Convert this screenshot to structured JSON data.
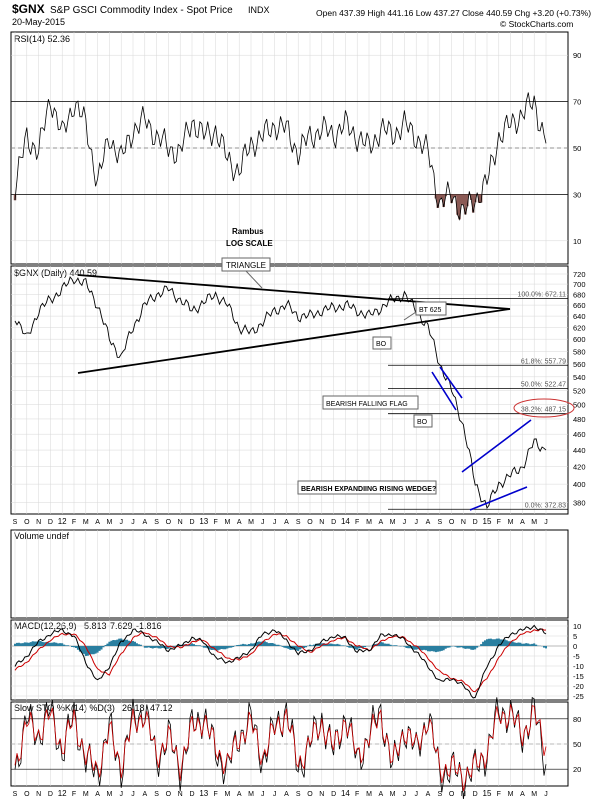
{
  "header": {
    "symbol": "$GNX",
    "title": "S&P GSCI Commodity Index - Spot Price",
    "exchange": "INDX",
    "date": "20-May-2015",
    "quote": "Open 437.39  High 441.16  Low 437.27  Close 440.59  Chg +3.20 (+0.73%)",
    "watermark": "© StockCharts.com"
  },
  "months": [
    "S",
    "O",
    "N",
    "D",
    "12",
    "F",
    "M",
    "A",
    "M",
    "J",
    "J",
    "A",
    "S",
    "O",
    "N",
    "D",
    "13",
    "F",
    "M",
    "A",
    "M",
    "J",
    "J",
    "A",
    "S",
    "O",
    "N",
    "D",
    "14",
    "F",
    "M",
    "A",
    "M",
    "J",
    "J",
    "A",
    "S",
    "O",
    "N",
    "D",
    "15",
    "F",
    "M",
    "A",
    "M",
    "J"
  ],
  "colors": {
    "price": "#000000",
    "trend": "#0000cc",
    "macd_fast": "#000000",
    "macd_signal": "#cc0000",
    "histogram": "#2a7fa0",
    "rsi_fill": "#8b5a55",
    "sto_d": "#cc0000",
    "grid": "#d7d7d7"
  },
  "annotations": {
    "rambus": "Rambus",
    "log_scale": "LOG SCALE",
    "triangle": "TRIANGLE",
    "bt625": "BT 625",
    "bo1": "BO",
    "bo2": "BO",
    "flag": "BEARISH FALLING FLAG",
    "wedge": "BEARISH EXPANDIING RISING WEDGE?"
  },
  "chart_data": [
    {
      "type": "line",
      "panel": "rsi",
      "title": "RSI(14) 52.36",
      "yticks": [
        10,
        30,
        50,
        70,
        90
      ],
      "ylim": [
        0,
        100
      ],
      "y_labels": [
        "10",
        "30",
        "50",
        "70",
        "90"
      ],
      "x_month_index": [
        0,
        1,
        2,
        3,
        4,
        5,
        6,
        7,
        8,
        9,
        10,
        11,
        12,
        13,
        14,
        15,
        16,
        17,
        18,
        19,
        20,
        21,
        22,
        23,
        24,
        25,
        26,
        27,
        28,
        29,
        30,
        31,
        32,
        33,
        34,
        35,
        36,
        37,
        38,
        39,
        40,
        41,
        42,
        43,
        44,
        45
      ],
      "values": [
        33,
        55,
        48,
        72,
        55,
        70,
        60,
        35,
        55,
        45,
        58,
        62,
        55,
        50,
        48,
        62,
        55,
        58,
        45,
        40,
        52,
        55,
        60,
        58,
        48,
        55,
        58,
        56,
        60,
        55,
        50,
        58,
        56,
        60,
        55,
        48,
        26,
        30,
        22,
        28,
        35,
        55,
        60,
        65,
        70,
        52
      ]
    },
    {
      "type": "line",
      "panel": "price",
      "title": "$GNX (Daily) 440.59",
      "scale": "log",
      "ylim": [
        370,
        720
      ],
      "yticks": [
        380,
        400,
        420,
        440,
        460,
        480,
        500,
        520,
        540,
        560,
        580,
        600,
        620,
        640,
        660,
        680,
        700,
        720
      ],
      "y_labels": [
        "380",
        "400",
        "420",
        "440",
        "460",
        "480",
        "500",
        "520",
        "540",
        "560",
        "580",
        "600",
        "620",
        "640",
        "660",
        "680",
        "700",
        "720"
      ],
      "x_month_index": [
        0,
        1,
        2,
        3,
        4,
        5,
        6,
        7,
        8,
        9,
        10,
        11,
        12,
        13,
        14,
        15,
        16,
        17,
        18,
        19,
        20,
        21,
        22,
        23,
        24,
        25,
        26,
        27,
        28,
        29,
        30,
        31,
        32,
        33,
        34,
        35,
        36,
        37,
        38,
        39,
        40,
        41,
        42,
        43,
        44,
        45
      ],
      "values": [
        640,
        600,
        650,
        670,
        690,
        712,
        700,
        660,
        600,
        570,
        620,
        660,
        680,
        690,
        670,
        650,
        665,
        680,
        660,
        620,
        610,
        630,
        650,
        660,
        640,
        640,
        650,
        655,
        660,
        650,
        640,
        655,
        670,
        680,
        650,
        620,
        560,
        520,
        470,
        400,
        375,
        400,
        410,
        420,
        450,
        440
      ],
      "retracements": [
        {
          "label": "100.0%: 672.11",
          "value": 672.11
        },
        {
          "label": "61.8%: 557.79",
          "value": 557.79
        },
        {
          "label": "50.0%: 522.47",
          "value": 522.47
        },
        {
          "label": "38.2%: 487.15",
          "value": 487.15
        },
        {
          "label": "0.0%: 372.83",
          "value": 372.83
        }
      ]
    },
    {
      "type": "bar",
      "panel": "volume",
      "title": "Volume undef",
      "values": []
    },
    {
      "type": "line",
      "panel": "macd",
      "title": "MACD(12,26,9)",
      "title_values": {
        "macd": "5.813",
        "signal": "7.629",
        "hist": "-1.816"
      },
      "ylim": [
        -27,
        13
      ],
      "yticks": [
        -25,
        -20,
        -15,
        -10,
        -5,
        0,
        5,
        10
      ],
      "y_labels": [
        "-25",
        "-20",
        "-15",
        "-10",
        "-5",
        "0",
        "5",
        "10"
      ],
      "series": [
        {
          "key": "macd",
          "values": [
            -10,
            -5,
            2,
            6,
            8,
            5,
            -8,
            -18,
            -10,
            2,
            8,
            6,
            2,
            -2,
            0,
            4,
            2,
            -6,
            -8,
            -6,
            -2,
            6,
            8,
            3,
            -4,
            -2,
            2,
            5,
            4,
            -3,
            -2,
            5,
            6,
            3,
            -3,
            -10,
            -18,
            -16,
            -20,
            -26,
            -10,
            0,
            6,
            8,
            10,
            6
          ]
        },
        {
          "key": "signal",
          "values": [
            -12,
            -8,
            -2,
            3,
            6,
            6,
            0,
            -12,
            -14,
            -4,
            4,
            7,
            4,
            0,
            -1,
            2,
            3,
            -2,
            -6,
            -7,
            -4,
            2,
            6,
            5,
            0,
            -3,
            0,
            3,
            4,
            0,
            -2,
            2,
            5,
            4,
            0,
            -6,
            -13,
            -16,
            -18,
            -23,
            -16,
            -6,
            2,
            6,
            8,
            8
          ]
        }
      ]
    },
    {
      "type": "line",
      "panel": "stochastic",
      "title": "Slow STO %K(14) %D(3)",
      "title_values": {
        "k": "26.18",
        "d": "47.12"
      },
      "ylim": [
        0,
        100
      ],
      "yticks": [
        20,
        50,
        80
      ],
      "y_labels": [
        "20",
        "50",
        "80"
      ],
      "series": [
        {
          "key": "k",
          "values": [
            20,
            80,
            60,
            90,
            40,
            85,
            30,
            15,
            70,
            20,
            80,
            90,
            30,
            60,
            20,
            70,
            85,
            40,
            20,
            60,
            80,
            30,
            70,
            90,
            20,
            50,
            80,
            40,
            85,
            30,
            60,
            90,
            20,
            70,
            40,
            85,
            15,
            20,
            10,
            20,
            40,
            90,
            85,
            60,
            90,
            26
          ]
        },
        {
          "key": "d",
          "values": [
            25,
            75,
            62,
            85,
            45,
            80,
            35,
            20,
            65,
            25,
            75,
            85,
            35,
            58,
            25,
            68,
            80,
            45,
            25,
            58,
            75,
            35,
            68,
            85,
            25,
            52,
            75,
            45,
            80,
            35,
            58,
            85,
            25,
            68,
            45,
            80,
            20,
            22,
            12,
            22,
            42,
            85,
            85,
            62,
            85,
            47
          ]
        }
      ]
    }
  ]
}
